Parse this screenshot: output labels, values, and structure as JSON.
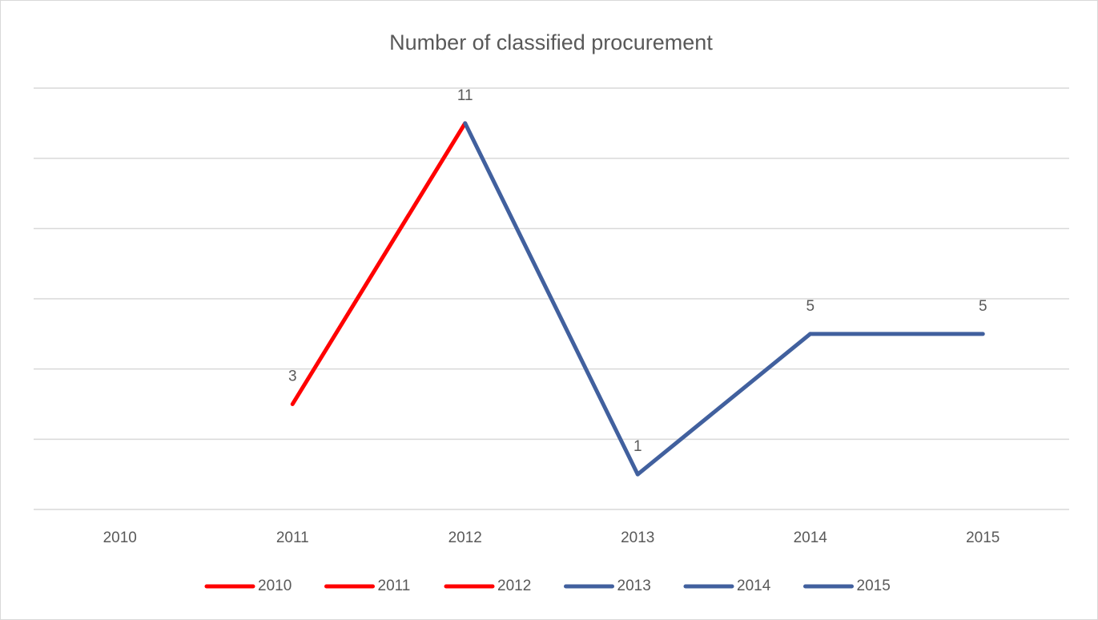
{
  "chart_data": {
    "type": "line",
    "title": "Number of classified procurement",
    "categories": [
      "2010",
      "2011",
      "2012",
      "2013",
      "2014",
      "2015"
    ],
    "values": [
      null,
      3,
      11,
      1,
      5,
      5
    ],
    "point_colors": [
      "#ff0000",
      "#ff0000",
      "#ff0000",
      "#41609e",
      "#41609e",
      "#41609e"
    ],
    "ylim": [
      0,
      12
    ],
    "yticks": [
      0,
      2,
      4,
      6,
      8,
      10,
      12
    ],
    "show_ytick_labels": false,
    "grid": true,
    "data_labels": true,
    "legend": "bottom"
  }
}
